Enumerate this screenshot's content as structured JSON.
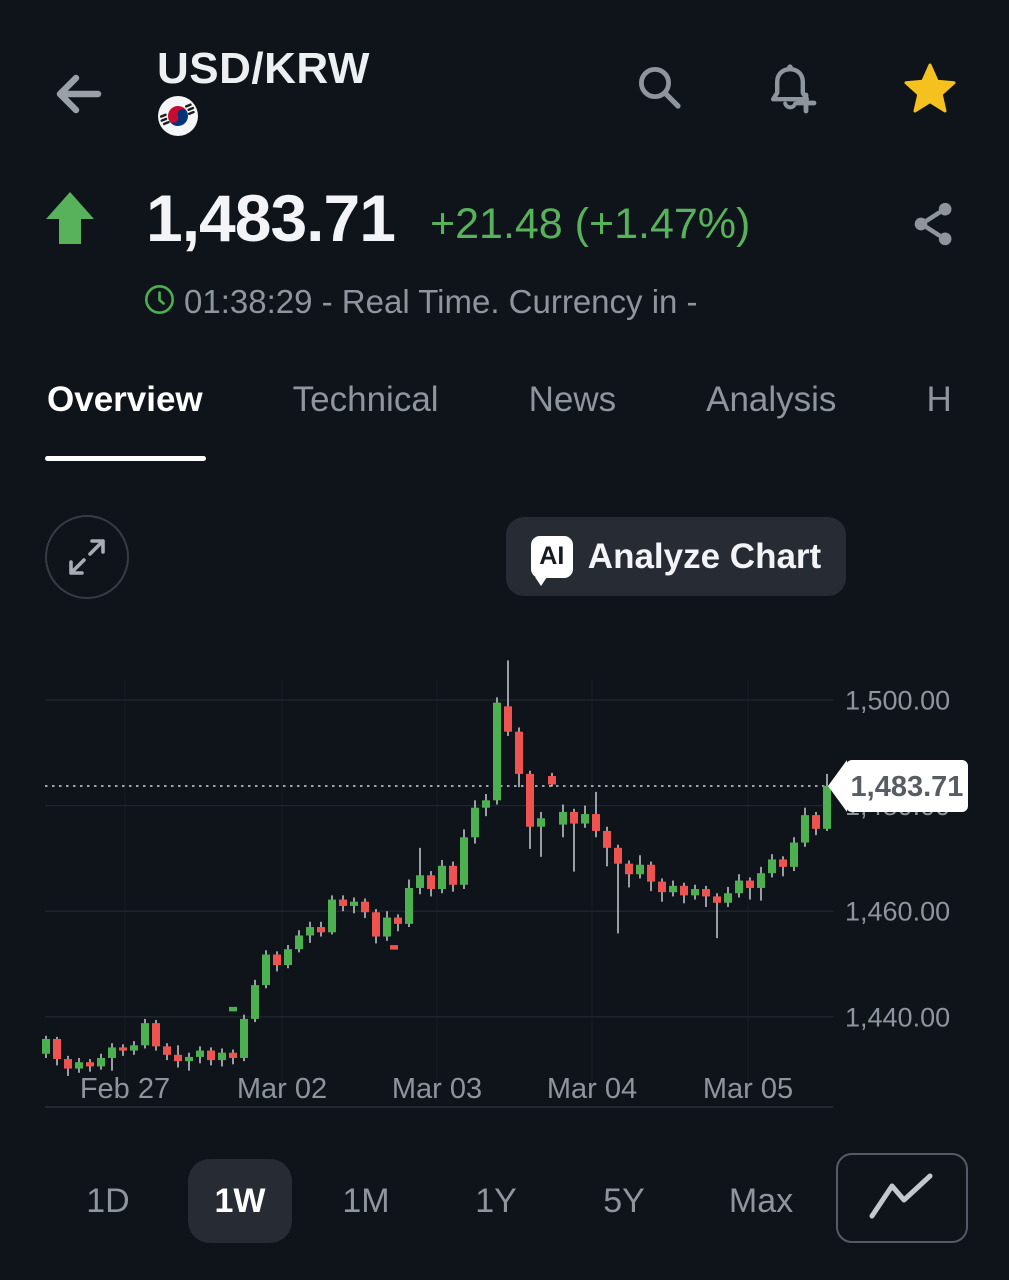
{
  "header": {
    "title": "USD/KRW",
    "icons": {
      "back": "arrow-left-icon",
      "flag": "south-korea-flag",
      "search": "magnifier-icon",
      "alerts": "bell-plus-icon",
      "favorite": "star-filled-icon"
    },
    "favorite_color": "#f5c11e"
  },
  "quote": {
    "direction": "up",
    "price": "1,483.71",
    "change": "+21.48 (+1.47%)",
    "session": "01:38:29 - Real Time. Currency in -",
    "icons": {
      "trend": "arrow-up-icon",
      "share": "share-nodes-icon",
      "clock": "clock-icon"
    }
  },
  "tabs": [
    {
      "label": "Overview",
      "active": true
    },
    {
      "label": "Technical",
      "active": false
    },
    {
      "label": "News",
      "active": false
    },
    {
      "label": "Analysis",
      "active": false
    },
    {
      "label": "H",
      "active": false,
      "truncated": true
    }
  ],
  "analyze": {
    "icon_label": "AI",
    "label": "Analyze Chart"
  },
  "timeframes": [
    {
      "label": "1D",
      "active": false
    },
    {
      "label": "1W",
      "active": true
    },
    {
      "label": "1M",
      "active": false
    },
    {
      "label": "1Y",
      "active": false
    },
    {
      "label": "5Y",
      "active": false
    },
    {
      "label": "Max",
      "active": false
    }
  ],
  "colors": {
    "background": "#0f141b",
    "up": "#4caf50",
    "down": "#ef5350",
    "wick": "#c8cdd3",
    "accent_green": "#57b25b",
    "secondary_text": "#8f959d",
    "grid": "#20262f",
    "vgrid": "#161c24",
    "axis": "#2a303a",
    "dotted_price_line": "#ccd1d7",
    "tag_bg": "#ffffff",
    "tag_text": "#585d64",
    "star": "#f5c11e"
  },
  "chart_data": {
    "type": "candlestick",
    "instrument": "USD/KRW",
    "timeframe": "1W",
    "x_ticks": [
      "Feb 27",
      "Mar 02",
      "Mar 03",
      "Mar 04",
      "Mar 05"
    ],
    "y_ticks": [
      "1,500.00",
      "1,480.00",
      "1,460.00",
      "1,440.00"
    ],
    "y_tick_values": [
      1500,
      1480,
      1460,
      1440
    ],
    "ylim": [
      1428,
      1510
    ],
    "grid": true,
    "last_price": 1483.71,
    "last_price_label": "1,483.71",
    "candles_format": [
      "open",
      "high",
      "low",
      "close"
    ],
    "candles": [
      [
        1433.0,
        1436.4,
        1432.2,
        1435.8
      ],
      [
        1435.8,
        1436.2,
        1430.8,
        1432.0
      ],
      [
        1432.0,
        1432.6,
        1428.8,
        1430.2
      ],
      [
        1430.2,
        1432.2,
        1429.4,
        1431.4
      ],
      [
        1431.4,
        1432.0,
        1429.6,
        1430.6
      ],
      [
        1430.6,
        1433.0,
        1430.0,
        1432.2
      ],
      [
        1432.2,
        1435.0,
        1429.8,
        1434.2
      ],
      [
        1434.2,
        1434.8,
        1432.6,
        1433.6
      ],
      [
        1433.6,
        1435.4,
        1432.8,
        1434.6
      ],
      [
        1434.6,
        1439.6,
        1434.0,
        1438.8
      ],
      [
        1438.8,
        1439.4,
        1433.6,
        1434.4
      ],
      [
        1434.4,
        1435.0,
        1431.8,
        1432.8
      ],
      [
        1432.8,
        1434.6,
        1430.4,
        1431.6
      ],
      [
        1431.6,
        1433.2,
        1429.8,
        1432.4
      ],
      [
        1432.4,
        1434.4,
        1431.2,
        1433.6
      ],
      [
        1433.6,
        1434.2,
        1430.8,
        1431.8
      ],
      [
        1431.8,
        1434.0,
        1430.6,
        1433.2
      ],
      [
        1433.2,
        1433.8,
        1431.0,
        1432.2
      ],
      [
        1432.2,
        1440.4,
        1431.6,
        1439.6
      ],
      [
        1439.6,
        1447.0,
        1439.0,
        1446.0
      ],
      [
        1446.0,
        1452.6,
        1445.4,
        1451.8
      ],
      [
        1451.8,
        1452.4,
        1448.6,
        1449.8
      ],
      [
        1449.8,
        1453.6,
        1449.2,
        1452.8
      ],
      [
        1452.8,
        1456.4,
        1452.2,
        1455.4
      ],
      [
        1455.4,
        1458.0,
        1454.0,
        1457.0
      ],
      [
        1457.0,
        1458.0,
        1455.2,
        1456.0
      ],
      [
        1456.0,
        1463.0,
        1455.6,
        1462.2
      ],
      [
        1462.2,
        1463.0,
        1460.0,
        1461.0
      ],
      [
        1461.0,
        1462.6,
        1459.6,
        1461.8
      ],
      [
        1461.8,
        1462.4,
        1458.7,
        1459.8
      ],
      [
        1459.8,
        1460.4,
        1453.9,
        1455.2
      ],
      [
        1455.2,
        1460.0,
        1454.4,
        1458.8
      ],
      [
        1458.8,
        1459.4,
        1456.2,
        1457.6
      ],
      [
        1457.6,
        1466.0,
        1457.0,
        1464.4
      ],
      [
        1464.4,
        1472.0,
        1463.2,
        1466.8
      ],
      [
        1466.8,
        1467.6,
        1462.8,
        1464.2
      ],
      [
        1464.2,
        1469.7,
        1463.4,
        1468.6
      ],
      [
        1468.6,
        1469.4,
        1463.7,
        1465.0
      ],
      [
        1465.0,
        1475.5,
        1464.2,
        1474.0
      ],
      [
        1474.0,
        1481.0,
        1472.8,
        1479.6
      ],
      [
        1479.6,
        1482.2,
        1478.0,
        1481.0
      ],
      [
        1481.0,
        1500.5,
        1480.2,
        1499.5
      ],
      [
        1498.8,
        1507.5,
        1493.2,
        1494.0
      ],
      [
        1494.0,
        1494.8,
        1483.5,
        1486.0
      ],
      [
        1486.0,
        1486.6,
        1471.8,
        1476.0
      ],
      [
        1476.0,
        1478.8,
        1470.3,
        1477.6
      ],
      [
        1485.6,
        1486.2,
        1483.6,
        1484.0
      ],
      [
        1476.4,
        1480.2,
        1474.0,
        1478.8
      ],
      [
        1478.8,
        1479.4,
        1467.5,
        1476.6
      ],
      [
        1476.6,
        1480.0,
        1475.8,
        1478.4
      ],
      [
        1478.4,
        1482.6,
        1474.0,
        1475.2
      ],
      [
        1475.2,
        1476.0,
        1468.5,
        1472.0
      ],
      [
        1472.0,
        1472.6,
        1455.8,
        1469.0
      ],
      [
        1469.0,
        1469.6,
        1464.5,
        1467.0
      ],
      [
        1467.0,
        1470.6,
        1466.2,
        1468.8
      ],
      [
        1468.8,
        1469.4,
        1463.8,
        1465.6
      ],
      [
        1465.6,
        1466.2,
        1461.8,
        1463.6
      ],
      [
        1463.6,
        1465.8,
        1462.8,
        1464.8
      ],
      [
        1464.8,
        1465.4,
        1461.5,
        1463.0
      ],
      [
        1463.0,
        1465.0,
        1462.2,
        1464.2
      ],
      [
        1464.2,
        1464.8,
        1460.8,
        1462.8
      ],
      [
        1462.8,
        1463.4,
        1454.9,
        1461.6
      ],
      [
        1461.6,
        1464.6,
        1460.8,
        1463.4
      ],
      [
        1463.4,
        1467.0,
        1462.6,
        1465.8
      ],
      [
        1465.8,
        1466.4,
        1462.2,
        1464.4
      ],
      [
        1464.4,
        1468.4,
        1462.0,
        1467.2
      ],
      [
        1467.2,
        1470.8,
        1466.4,
        1469.8
      ],
      [
        1469.8,
        1470.4,
        1466.6,
        1468.4
      ],
      [
        1468.4,
        1474.0,
        1467.6,
        1473.0
      ],
      [
        1473.0,
        1479.6,
        1472.2,
        1478.2
      ],
      [
        1478.2,
        1478.8,
        1474.4,
        1475.6
      ],
      [
        1475.6,
        1486.0,
        1475.2,
        1483.71
      ]
    ],
    "stray_marks": [
      {
        "x": 233,
        "price": 1441.5,
        "dir": "up"
      },
      {
        "x": 394,
        "price": 1453.2,
        "dir": "down"
      }
    ]
  }
}
